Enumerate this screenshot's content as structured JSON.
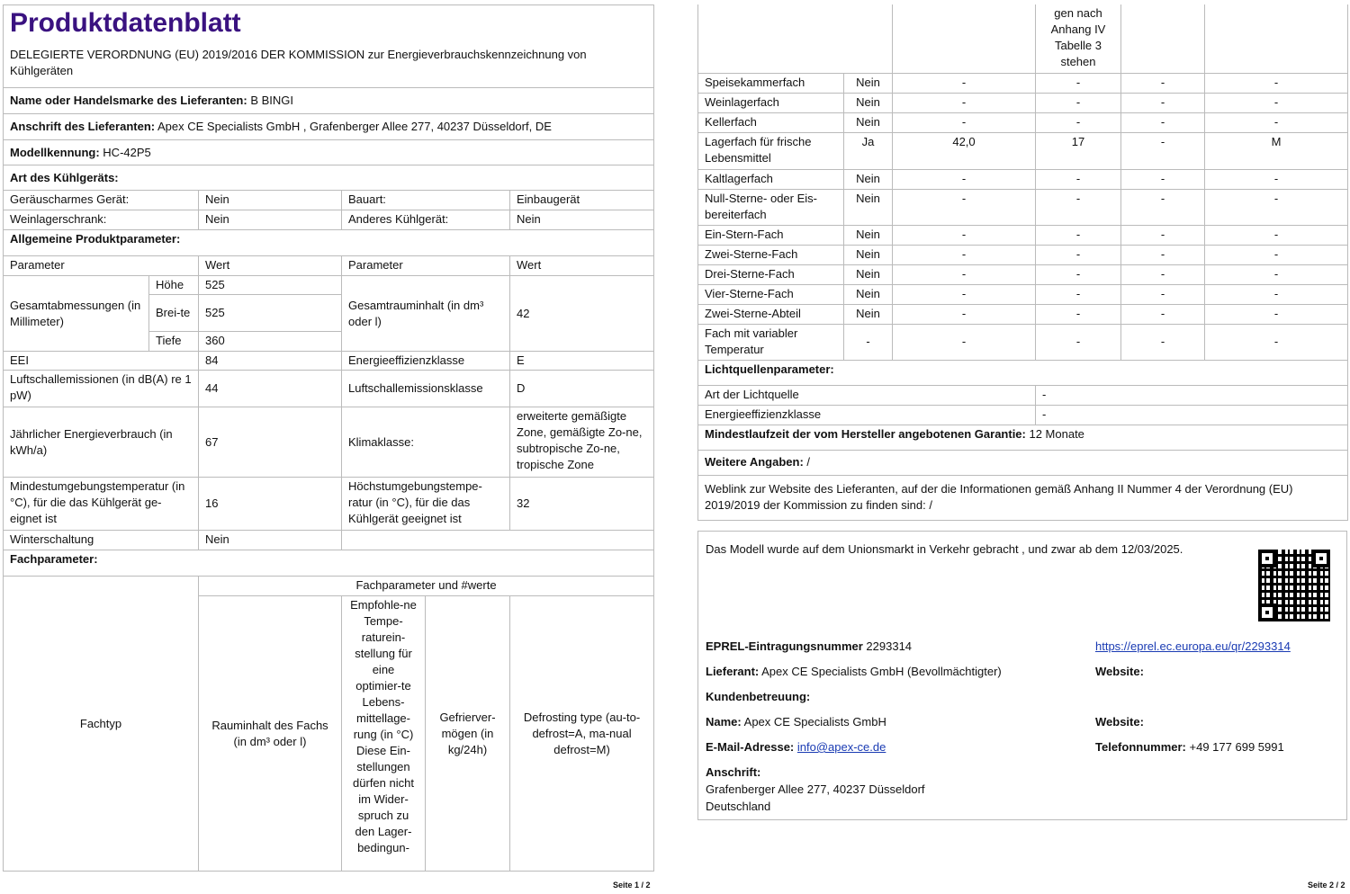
{
  "title": "Produktdatenblatt",
  "regulation": "DELEGIERTE VERORDNUNG (EU) 2019/2016 DER KOMMISSION zur Energieverbrauchskennzeichnung von Kühlgeräten",
  "supplier_name": {
    "label": "Name oder Handelsmarke des Lieferanten:",
    "value": "B BINGI"
  },
  "supplier_address": {
    "label": "Anschrift des Lieferanten:",
    "value": "Apex CE Specialists GmbH , Grafenberger Allee 277, 40237 Düsseldorf, DE"
  },
  "model": {
    "label": "Modellkennung:",
    "value": "HC-42P5"
  },
  "type_section": "Art des Kühlgeräts:",
  "type_rows": [
    {
      "l1": "Geräuscharmes Gerät:",
      "v1": "Nein",
      "l2": "Bauart:",
      "v2": "Einbaugerät"
    },
    {
      "l1": "Weinlagerschrank:",
      "v1": "Nein",
      "l2": "Anderes Kühlgerät:",
      "v2": "Nein"
    }
  ],
  "general_section": "Allgemeine Produktparameter:",
  "general_header": {
    "p": "Parameter",
    "w": "Wert"
  },
  "dims": {
    "label": "Gesamtabmessungen (in Millimeter)",
    "h_label": "Höhe",
    "h": "525",
    "b_label": "Brei-te",
    "b": "525",
    "t_label": "Tiefe",
    "t": "360"
  },
  "volume": {
    "label": "Gesamtrauminhalt (in dm³ oder l)",
    "value": "42"
  },
  "general_rows": [
    {
      "l1": "EEI",
      "v1": "84",
      "l2": "Energieeffizienzklasse",
      "v2": "E"
    },
    {
      "l1": "Luftschallemissionen (in dB(A) re 1 pW)",
      "v1": "44",
      "l2": "Luftschallemissionsklasse",
      "v2": "D"
    },
    {
      "l1": "Jährlicher Energieverbrauch (in kWh/a)",
      "v1": "67",
      "l2": "Klimaklasse:",
      "v2": "erweiterte gemäßigte Zone, gemäßigte Zo-ne, subtropische Zo-ne, tropische Zone"
    },
    {
      "l1": "Mindestumgebungstemperatur (in °C), für die das Kühlgerät ge-eignet ist",
      "v1": "16",
      "l2": "Höchstumgebungstempe-ratur (in °C), für die das Kühlgerät geeignet ist",
      "v2": "32"
    }
  ],
  "winter": {
    "label": "Winterschaltung",
    "value": "Nein"
  },
  "compartment_section": "Fachparameter:",
  "compartment_header": {
    "group": "Fachparameter und #werte",
    "type": "Fachtyp",
    "volume": "Rauminhalt des Fachs (in dm³ oder l)",
    "temp": "Empfohle-ne Tempe-raturein-stellung für eine optimier-te Lebens-mittellage-rung (in °C) Diese Ein-stellungen dürfen nicht im Wider-spruch zu den Lager-bedingun-",
    "temp_cont": "gen nach Anhang IV Tabelle 3 stehen",
    "freeze": "Gefrierver-mögen (in kg/24h)",
    "defrost": "Defrosting type (au-to-defrost=A, ma-nual defrost=M)"
  },
  "compartments": [
    {
      "name": "Speisekammerfach",
      "present": "Nein",
      "vol": "-",
      "temp": "-",
      "freeze": "-",
      "defrost": "-"
    },
    {
      "name": "Weinlagerfach",
      "present": "Nein",
      "vol": "-",
      "temp": "-",
      "freeze": "-",
      "defrost": "-"
    },
    {
      "name": "Kellerfach",
      "present": "Nein",
      "vol": "-",
      "temp": "-",
      "freeze": "-",
      "defrost": "-"
    },
    {
      "name": "Lagerfach für frische Lebensmittel",
      "present": "Ja",
      "vol": "42,0",
      "temp": "17",
      "freeze": "-",
      "defrost": "M"
    },
    {
      "name": "Kaltlagerfach",
      "present": "Nein",
      "vol": "-",
      "temp": "-",
      "freeze": "-",
      "defrost": "-"
    },
    {
      "name": "Null-Sterne- oder Eis-bereiterfach",
      "present": "Nein",
      "vol": "-",
      "temp": "-",
      "freeze": "-",
      "defrost": "-"
    },
    {
      "name": "Ein-Stern-Fach",
      "present": "Nein",
      "vol": "-",
      "temp": "-",
      "freeze": "-",
      "defrost": "-"
    },
    {
      "name": "Zwei-Sterne-Fach",
      "present": "Nein",
      "vol": "-",
      "temp": "-",
      "freeze": "-",
      "defrost": "-"
    },
    {
      "name": "Drei-Sterne-Fach",
      "present": "Nein",
      "vol": "-",
      "temp": "-",
      "freeze": "-",
      "defrost": "-"
    },
    {
      "name": "Vier-Sterne-Fach",
      "present": "Nein",
      "vol": "-",
      "temp": "-",
      "freeze": "-",
      "defrost": "-"
    },
    {
      "name": "Zwei-Sterne-Abteil",
      "present": "Nein",
      "vol": "-",
      "temp": "-",
      "freeze": "-",
      "defrost": "-"
    },
    {
      "name": "Fach mit variabler Temperatur",
      "present": "-",
      "vol": "-",
      "temp": "-",
      "freeze": "-",
      "defrost": "-"
    }
  ],
  "light_section": "Lichtquellenparameter:",
  "light_rows": [
    {
      "label": "Art der Lichtquelle",
      "value": "-"
    },
    {
      "label": "Energieeffizienzklasse",
      "value": "-"
    }
  ],
  "warranty": {
    "label": "Mindestlaufzeit der vom Hersteller angebotenen Garantie:",
    "value": "12 Monate"
  },
  "additional": {
    "label": "Weitere Angaben:",
    "value": "/"
  },
  "weblink": "Weblink zur Website des Lieferanten, auf der die Informationen gemäß Anhang II Nummer 4 der Verordnung (EU) 2019/2019 der Kommission zu finden sind:  /",
  "market": "Das Modell wurde auf dem Unionsmarkt in Verkehr gebracht , und zwar ab dem 12/03/2025.",
  "eprel": {
    "label": "EPREL-Eintragungsnummer",
    "value": "2293314",
    "url": "https://eprel.ec.europa.eu/qr/2293314"
  },
  "lieferant": {
    "label": "Lieferant:",
    "value": "Apex CE Specialists GmbH (Bevollmächtigter)",
    "website_label": "Website:"
  },
  "support": {
    "label": "Kundenbetreuung:",
    "name_label": "Name:",
    "name": "Apex CE Specialists GmbH",
    "website_label": "Website:",
    "email_label": "E-Mail-Adresse:",
    "email": "info@apex-ce.de",
    "phone_label": "Telefonnummer:",
    "phone": "+49 177 699 5991",
    "address_label": "Anschrift:",
    "address1": "Grafenberger Allee 277, 40237 Düsseldorf",
    "address2": "Deutschland"
  },
  "page1": "Seite 1 / 2",
  "page2": "Seite 2 / 2"
}
